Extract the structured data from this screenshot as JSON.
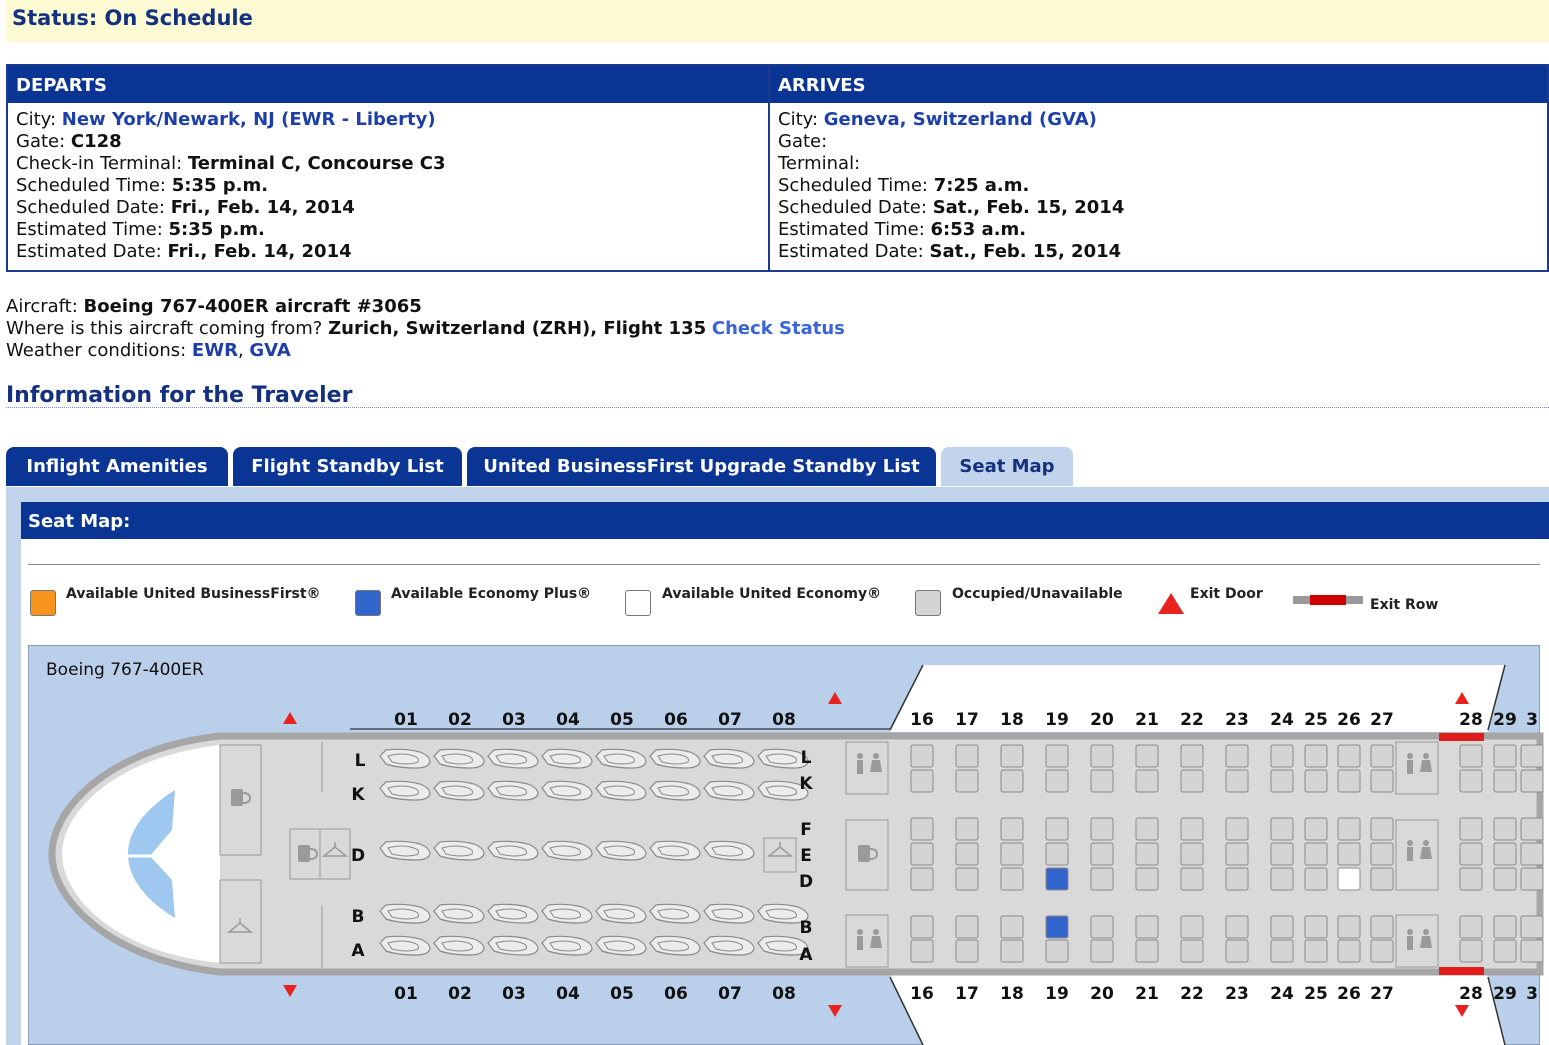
{
  "status": {
    "label": "Status: On Schedule"
  },
  "departs": {
    "header": "DEPARTS",
    "city_label": "City:",
    "city": "New York/Newark, NJ (EWR - Liberty)",
    "gate_label": "Gate:",
    "gate": "C128",
    "terminal_label": "Check-in Terminal:",
    "terminal": "Terminal C, Concourse C3",
    "sched_time_label": "Scheduled Time:",
    "sched_time": "5:35 p.m.",
    "sched_date_label": "Scheduled Date:",
    "sched_date": "Fri., Feb. 14, 2014",
    "est_time_label": "Estimated Time:",
    "est_time": "5:35 p.m.",
    "est_date_label": "Estimated Date:",
    "est_date": "Fri., Feb. 14, 2014"
  },
  "arrives": {
    "header": "ARRIVES",
    "city_label": "City:",
    "city": "Geneva, Switzerland (GVA)",
    "gate_label": "Gate:",
    "terminal_label": "Terminal:",
    "sched_time_label": "Scheduled Time:",
    "sched_time": "7:25 a.m.",
    "sched_date_label": "Scheduled Date:",
    "sched_date": "Sat., Feb. 15, 2014",
    "est_time_label": "Estimated Time:",
    "est_time": "6:53 a.m.",
    "est_date_label": "Estimated Date:",
    "est_date": "Sat., Feb. 15, 2014"
  },
  "aircraft": {
    "label": "Aircraft:",
    "value": "Boeing 767-400ER aircraft #3065",
    "origin_label": "Where is this aircraft coming from?",
    "origin_value": "Zurich, Switzerland (ZRH), Flight 135",
    "check_status": "Check Status",
    "weather_label": "Weather conditions:",
    "weather_ewr": "EWR",
    "weather_sep": ",",
    "weather_gva": "GVA"
  },
  "traveler": {
    "title": "Information for the Traveler"
  },
  "tabs": [
    {
      "label": "Inflight Amenities"
    },
    {
      "label": "Flight Standby List"
    },
    {
      "label": "United BusinessFirst Upgrade Standby List"
    },
    {
      "label": "Seat Map"
    }
  ],
  "seatmap": {
    "header": "Seat Map:",
    "aircraft_name": "Boeing 767-400ER",
    "legend": [
      {
        "label": "Available United BusinessFirst®",
        "color": "#f7941d"
      },
      {
        "label": "Available Economy Plus®",
        "color": "#3366cc"
      },
      {
        "label": "Available United Economy®",
        "color": "#ffffff"
      },
      {
        "label": "Occupied/Unavailable",
        "color": "#d4d4d4"
      },
      {
        "label": "Exit Door",
        "color": "#e8231f"
      },
      {
        "label": "Exit Row",
        "color": "#cc0000"
      }
    ],
    "business_rows": [
      "01",
      "02",
      "03",
      "04",
      "05",
      "06",
      "07",
      "08"
    ],
    "business_letters_left": [
      "L",
      "K",
      "D",
      "B",
      "A"
    ],
    "business_letters_right": [
      "L",
      "K",
      "F",
      "E",
      "D",
      "B",
      "A"
    ],
    "economy_rows": [
      "16",
      "17",
      "18",
      "19",
      "20",
      "21",
      "22",
      "23",
      "24",
      "25",
      "26",
      "27",
      "28",
      "29",
      "3"
    ]
  }
}
